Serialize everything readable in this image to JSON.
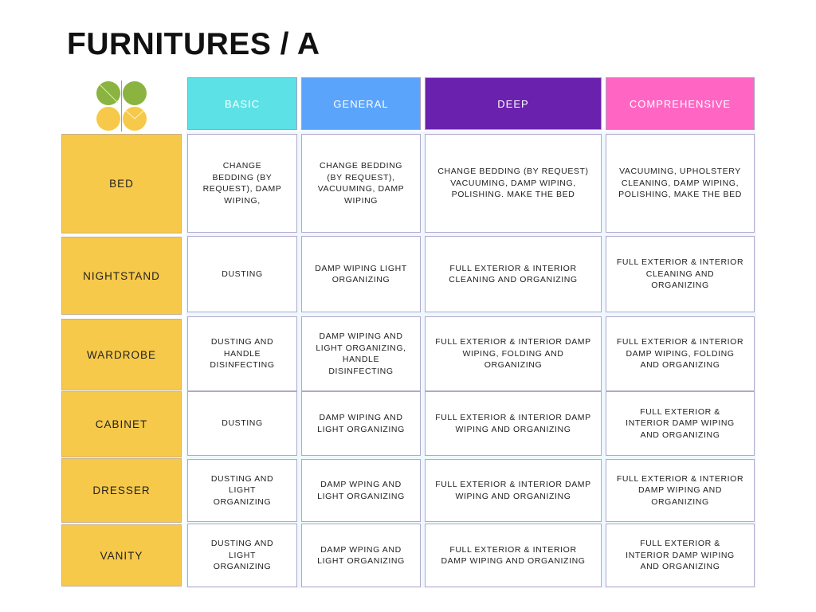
{
  "title": "FURNITURES / A",
  "colors": {
    "basic": "#5ce1e6",
    "general": "#5ba4fc",
    "deep": "#6a21ae",
    "comprehensive": "#ff66c4",
    "row_label": "#f7c94a",
    "logo_green": "#8ab43f",
    "logo_yellow": "#f7c94a"
  },
  "logo_icon": "four-leaf-clover-logo",
  "columns": [
    "BASIC",
    "GENERAL",
    "DEEP",
    "COMPREHENSIVE"
  ],
  "rows": [
    {
      "label": "BED",
      "cells": [
        "CHANGE\nBEDDING (BY\nREQUEST), DAMP\nWIPING,",
        "CHANGE BEDDING\n(BY REQUEST),\nVACUUMING, DAMP\nWIPING",
        "CHANGE BEDDING (BY REQUEST)\nVACUUMING, DAMP WIPING,\nPOLISHING. MAKE THE BED",
        "VACUUMING, UPHOLSTERY\nCLEANING, DAMP WIPING,\nPOLISHING, MAKE THE BED"
      ]
    },
    {
      "label": "NIGHTSTAND",
      "cells": [
        "DUSTING",
        "DAMP WIPING LIGHT\nORGANIZING",
        "FULL EXTERIOR & INTERIOR\nCLEANING AND ORGANIZING",
        "FULL EXTERIOR & INTERIOR\nCLEANING AND\nORGANIZING"
      ]
    },
    {
      "label": "WARDROBE",
      "cells": [
        "DUSTING AND\nHANDLE\nDISINFECTING",
        "DAMP WIPING AND\nLIGHT ORGANIZING,\nHANDLE\nDISINFECTING",
        "FULL EXTERIOR & INTERIOR DAMP\nWIPING, FOLDING AND\nORGANIZING",
        "FULL EXTERIOR & INTERIOR\nDAMP WIPING, FOLDING\nAND ORGANIZING"
      ]
    },
    {
      "label": "CABINET",
      "cells": [
        "DUSTING",
        "DAMP WIPING AND\nLIGHT ORGANIZING",
        "FULL EXTERIOR & INTERIOR DAMP\nWIPING AND ORGANIZING",
        "FULL EXTERIOR &\nINTERIOR DAMP WIPING\nAND ORGANIZING"
      ]
    },
    {
      "label": "DRESSER",
      "cells": [
        "DUSTING AND\nLIGHT\nORGANIZING",
        "DAMP WPING AND\nLIGHT ORGANIZING",
        "FULL EXTERIOR & INTERIOR DAMP\nWIPING AND ORGANIZING",
        "FULL EXTERIOR & INTERIOR\nDAMP WIPING AND\nORGANIZING"
      ]
    },
    {
      "label": "VANITY",
      "cells": [
        "DUSTING AND\nLIGHT\nORGANIZING",
        "DAMP WPING AND\nLIGHT ORGANIZING",
        "FULL EXTERIOR & INTERIOR\nDAMP WIPING AND ORGANIZING",
        "FULL EXTERIOR &\nINTERIOR DAMP WIPING\nAND ORGANIZING"
      ]
    }
  ]
}
